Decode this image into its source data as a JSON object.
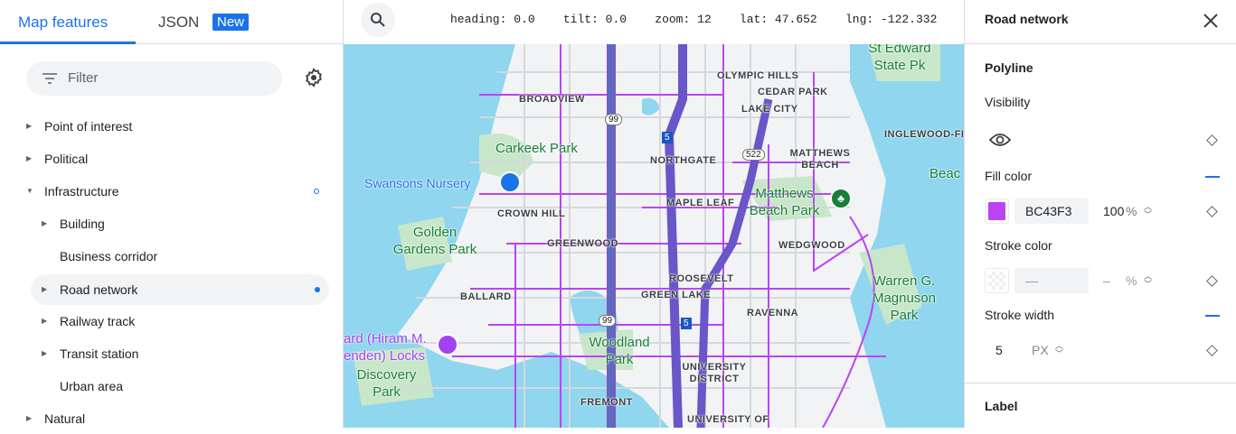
{
  "left_panel": {
    "tabs": [
      {
        "label": "Map features",
        "active": true
      },
      {
        "label": "JSON",
        "badge": "New"
      }
    ],
    "filter": {
      "placeholder": "Filter",
      "icon": "filter-icon"
    },
    "settings_icon": "gear-icon",
    "tree": [
      {
        "label": "Point of interest",
        "expandable": true,
        "expanded": false,
        "level": 0
      },
      {
        "label": "Political",
        "expandable": true,
        "expanded": false,
        "level": 0
      },
      {
        "label": "Infrastructure",
        "expandable": true,
        "expanded": true,
        "level": 0,
        "indicator": "hollow-dot"
      },
      {
        "label": "Building",
        "expandable": true,
        "level": 1
      },
      {
        "label": "Business corridor",
        "expandable": false,
        "level": 1
      },
      {
        "label": "Road network",
        "expandable": true,
        "level": 1,
        "selected": true,
        "indicator": "filled-dot"
      },
      {
        "label": "Railway track",
        "expandable": true,
        "level": 1
      },
      {
        "label": "Transit station",
        "expandable": true,
        "level": 1
      },
      {
        "label": "Urban area",
        "expandable": false,
        "level": 1
      },
      {
        "label": "Natural",
        "expandable": true,
        "expanded": false,
        "level": 0
      }
    ]
  },
  "map": {
    "search_icon": "search-icon",
    "coords": {
      "heading": "heading: 0.0",
      "tilt": "tilt: 0.0",
      "zoom": "zoom: 12",
      "lat": "lat: 47.652",
      "lng": "lng: -122.332"
    },
    "neighborhoods": [
      "BROADVIEW",
      "OLYMPIC HILLS",
      "CEDAR PARK",
      "LAKE CITY",
      "NORTHGATE",
      "MATTHEWS BEACH",
      "INGLEWOOD-FI",
      "CROWN HILL",
      "MAPLE LEAF",
      "GREENWOOD",
      "WEDGWOOD",
      "ROOSEVELT",
      "GREEN LAKE",
      "BALLARD",
      "RAVENNA",
      "UNIVERSITY DISTRICT",
      "FREMONT",
      "UNIVERSITY OF"
    ],
    "parks": [
      "Carkeek Park",
      "Golden Gardens Park",
      "Matthews Beach Park",
      "Woodland Park",
      "Discovery Park",
      "Warren G. Magnuson Park",
      "St Edward State Pk",
      "Beac"
    ],
    "places": [
      "Swansons Nursery",
      "ard (Hiram M. enden) Locks"
    ],
    "shields": [
      "99",
      "5",
      "522",
      "99",
      "5"
    ],
    "road_color": "#BC43F3"
  },
  "right_panel": {
    "title": "Road network",
    "close_icon": "close-icon",
    "section": "Polyline",
    "visibility": {
      "label": "Visibility",
      "icon": "eye-icon"
    },
    "fill_color": {
      "label": "Fill color",
      "hex": "BC43F3",
      "opacity": "100",
      "unit": "%",
      "swatch": "#BC43F3"
    },
    "stroke_color": {
      "label": "Stroke color",
      "hex": "—",
      "opacity": "–",
      "unit": "%"
    },
    "stroke_width": {
      "label": "Stroke width",
      "value": "5",
      "unit": "PX"
    },
    "next_section": "Label"
  }
}
